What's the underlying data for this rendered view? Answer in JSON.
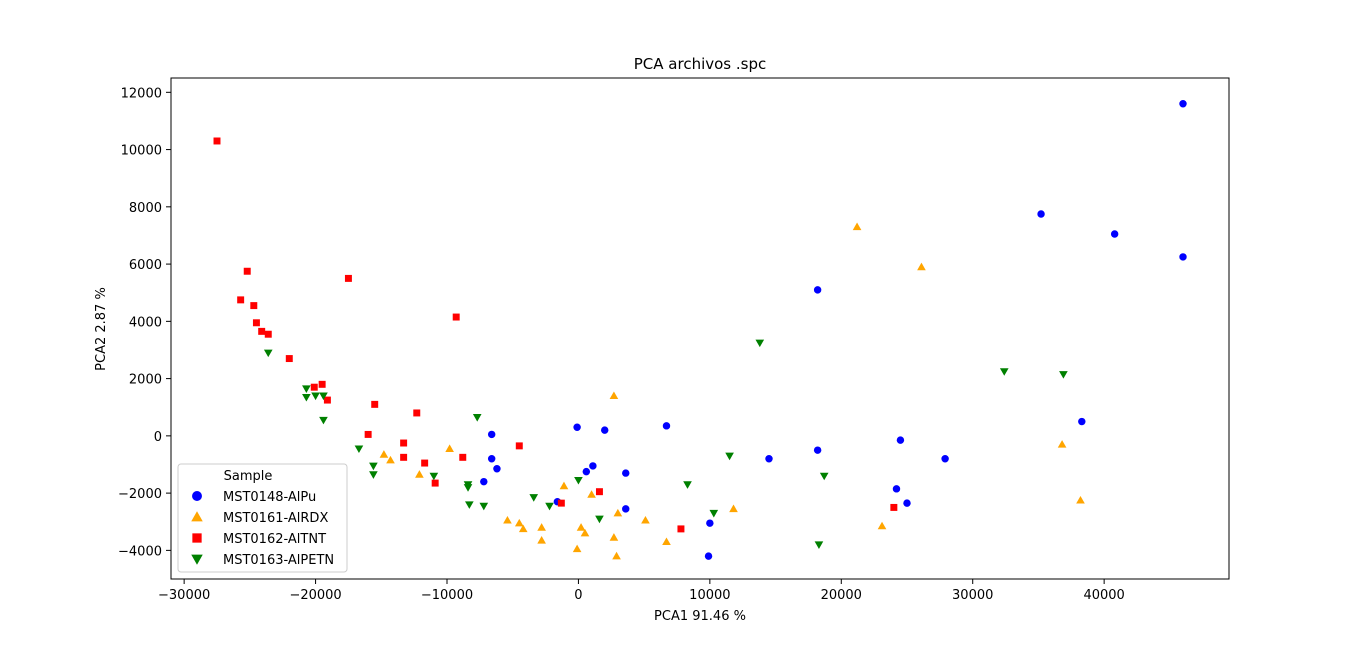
{
  "chart_data": {
    "type": "scatter",
    "title": "PCA archivos .spc",
    "xlabel": "PCA1 91.46 %",
    "ylabel": "PCA2 2.87 %",
    "xlim": [
      -31000,
      49500
    ],
    "ylim": [
      -5000,
      12500
    ],
    "xticks": [
      -30000,
      -20000,
      -10000,
      0,
      10000,
      20000,
      30000,
      40000
    ],
    "xtick_labels": [
      "−30000",
      "−20000",
      "−10000",
      "0",
      "10000",
      "20000",
      "30000",
      "40000"
    ],
    "yticks": [
      -4000,
      -2000,
      0,
      2000,
      4000,
      6000,
      8000,
      10000,
      12000
    ],
    "ytick_labels": [
      "−4000",
      "−2000",
      "0",
      "2000",
      "4000",
      "6000",
      "8000",
      "10000",
      "12000"
    ],
    "grid": false,
    "legend": {
      "title": "Sample",
      "placement": "lower-left"
    },
    "series": [
      {
        "name": "MST0148-AlPu",
        "color": "#0000ff",
        "marker": "circle",
        "points": [
          [
            46000,
            11600
          ],
          [
            35200,
            7750
          ],
          [
            40800,
            7050
          ],
          [
            46000,
            6250
          ],
          [
            18200,
            5100
          ],
          [
            38300,
            500
          ],
          [
            24500,
            -150
          ],
          [
            18200,
            -500
          ],
          [
            14500,
            -800
          ],
          [
            27900,
            -800
          ],
          [
            24200,
            -1850
          ],
          [
            25000,
            -2350
          ],
          [
            9900,
            -4200
          ],
          [
            10000,
            -3050
          ],
          [
            3600,
            -2550
          ],
          [
            3600,
            -1300
          ],
          [
            1100,
            -1050
          ],
          [
            600,
            -1250
          ],
          [
            2000,
            200
          ],
          [
            -100,
            300
          ],
          [
            6700,
            350
          ],
          [
            -6600,
            50
          ],
          [
            -6600,
            -800
          ],
          [
            -6200,
            -1150
          ],
          [
            -7200,
            -1600
          ],
          [
            -1600,
            -2300
          ]
        ]
      },
      {
        "name": "MST0161-AlRDX",
        "color": "#ffa500",
        "marker": "triangle-up",
        "points": [
          [
            21200,
            7300
          ],
          [
            26100,
            5900
          ],
          [
            2700,
            1400
          ],
          [
            36800,
            -300
          ],
          [
            38200,
            -2250
          ],
          [
            23100,
            -3150
          ],
          [
            11800,
            -2550
          ],
          [
            5100,
            -2950
          ],
          [
            3000,
            -2700
          ],
          [
            1000,
            -2050
          ],
          [
            -1100,
            -1750
          ],
          [
            2700,
            -3550
          ],
          [
            2900,
            -4200
          ],
          [
            6700,
            -3700
          ],
          [
            200,
            -3200
          ],
          [
            500,
            -3400
          ],
          [
            -100,
            -3950
          ],
          [
            -2800,
            -3200
          ],
          [
            -2800,
            -3650
          ],
          [
            -4500,
            -3050
          ],
          [
            -4200,
            -3250
          ],
          [
            -5400,
            -2950
          ],
          [
            -9800,
            -450
          ],
          [
            -12100,
            -1350
          ],
          [
            -14300,
            -850
          ],
          [
            -14800,
            -650
          ]
        ]
      },
      {
        "name": "MST0162-AlTNT",
        "color": "#ff0000",
        "marker": "square",
        "points": [
          [
            -27500,
            10300
          ],
          [
            -25200,
            5750
          ],
          [
            -25700,
            4750
          ],
          [
            -24700,
            4550
          ],
          [
            -24500,
            3950
          ],
          [
            -24100,
            3650
          ],
          [
            -23600,
            3550
          ],
          [
            -22000,
            2700
          ],
          [
            -20100,
            1700
          ],
          [
            -19500,
            1800
          ],
          [
            -19100,
            1250
          ],
          [
            -17500,
            5500
          ],
          [
            -9300,
            4150
          ],
          [
            -15500,
            1100
          ],
          [
            -12300,
            800
          ],
          [
            -16000,
            50
          ],
          [
            -13300,
            -250
          ],
          [
            -13300,
            -750
          ],
          [
            -11700,
            -950
          ],
          [
            -10900,
            -1650
          ],
          [
            -8800,
            -750
          ],
          [
            -4500,
            -350
          ],
          [
            -1300,
            -2350
          ],
          [
            1600,
            -1950
          ],
          [
            7800,
            -3250
          ],
          [
            24000,
            -2500
          ]
        ]
      },
      {
        "name": "MST0163-AlPETN",
        "color": "#008000",
        "marker": "triangle-down",
        "points": [
          [
            -23600,
            2900
          ],
          [
            -20700,
            1650
          ],
          [
            -20700,
            1350
          ],
          [
            -20000,
            1400
          ],
          [
            -19400,
            1400
          ],
          [
            -19400,
            550
          ],
          [
            -16700,
            -450
          ],
          [
            -15600,
            -1050
          ],
          [
            -15600,
            -1350
          ],
          [
            -11000,
            -1400
          ],
          [
            -8400,
            -1700
          ],
          [
            -8400,
            -1800
          ],
          [
            -8300,
            -2400
          ],
          [
            -7200,
            -2450
          ],
          [
            -7700,
            650
          ],
          [
            -3400,
            -2150
          ],
          [
            -2200,
            -2450
          ],
          [
            0,
            -1550
          ],
          [
            1600,
            -2900
          ],
          [
            8300,
            -1700
          ],
          [
            10300,
            -2700
          ],
          [
            11500,
            -700
          ],
          [
            13800,
            3250
          ],
          [
            18300,
            -3800
          ],
          [
            18700,
            -1400
          ],
          [
            32400,
            2250
          ],
          [
            36900,
            2150
          ]
        ]
      }
    ]
  }
}
